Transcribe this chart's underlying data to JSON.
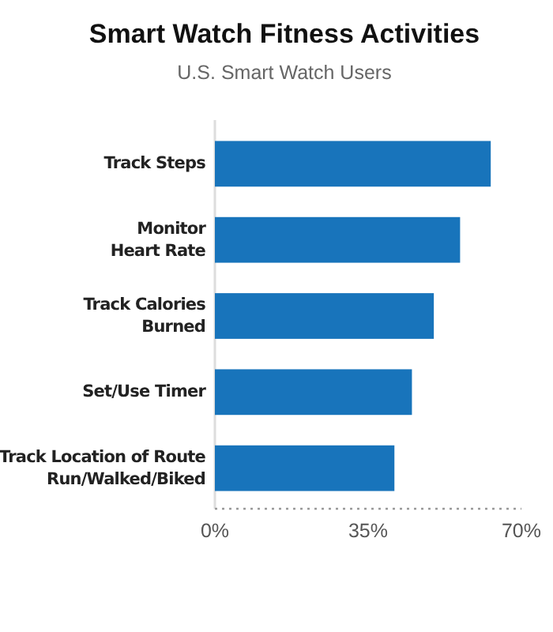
{
  "chart_data": {
    "type": "bar",
    "orientation": "horizontal",
    "title": "Smart Watch Fitness Activities",
    "subtitle": "U.S. Smart Watch Users",
    "categories": [
      "Track Steps",
      "Monitor\nHeart Rate",
      "Track Calories\nBurned",
      "Set/Use Timer",
      "Track Location of Route\nRun/Walked/Biked"
    ],
    "values": [
      63,
      56,
      50,
      45,
      41
    ],
    "color": "#1874bb",
    "xlim": [
      0,
      70
    ],
    "xticks": [
      {
        "value": 0,
        "label": "0%"
      },
      {
        "value": 35,
        "label": "35%"
      },
      {
        "value": 70,
        "label": "70%"
      }
    ],
    "grid": false
  }
}
